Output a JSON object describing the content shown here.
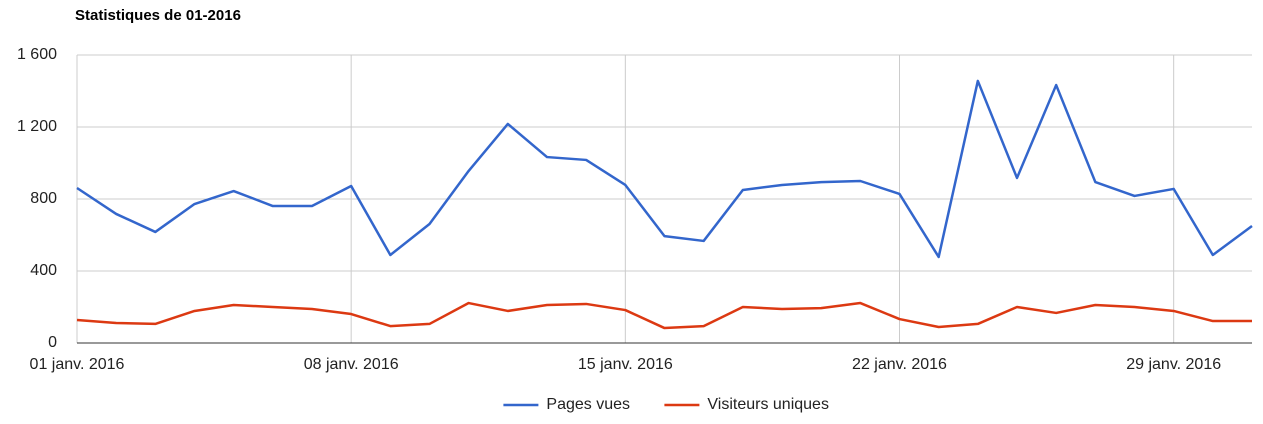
{
  "chart_data": {
    "type": "line",
    "title": "Statistiques de 01-2016",
    "categories": [
      "01 janv. 2016",
      null,
      null,
      null,
      null,
      null,
      null,
      "08 janv. 2016",
      null,
      null,
      null,
      null,
      null,
      null,
      "15 janv. 2016",
      null,
      null,
      null,
      null,
      null,
      null,
      "22 janv. 2016",
      null,
      null,
      null,
      null,
      null,
      null,
      "29 janv. 2016",
      null,
      null
    ],
    "series": [
      {
        "name": "Pages vues",
        "color": "#3366cc",
        "values": [
          861,
          717,
          617,
          772,
          844,
          761,
          761,
          872,
          489,
          661,
          956,
          1217,
          1033,
          1017,
          878,
          594,
          567,
          850,
          878,
          894,
          900,
          828,
          478,
          1456,
          917,
          1433,
          894,
          817,
          856,
          489,
          650
        ]
      },
      {
        "name": "Visiteurs uniques",
        "color": "#dc3912",
        "values": [
          128,
          111,
          106,
          178,
          211,
          200,
          189,
          161,
          94,
          106,
          222,
          178,
          211,
          217,
          183,
          83,
          94,
          200,
          189,
          194,
          222,
          133,
          89,
          106,
          200,
          167,
          211,
          200,
          178,
          122,
          122
        ]
      }
    ],
    "ylim": [
      0,
      1600
    ],
    "yticks": [
      0,
      400,
      800,
      {
        "value": 1200,
        "label": "1 200"
      },
      {
        "value": 1600,
        "label": "1 600"
      }
    ],
    "grid": true,
    "legend": "bottom"
  }
}
